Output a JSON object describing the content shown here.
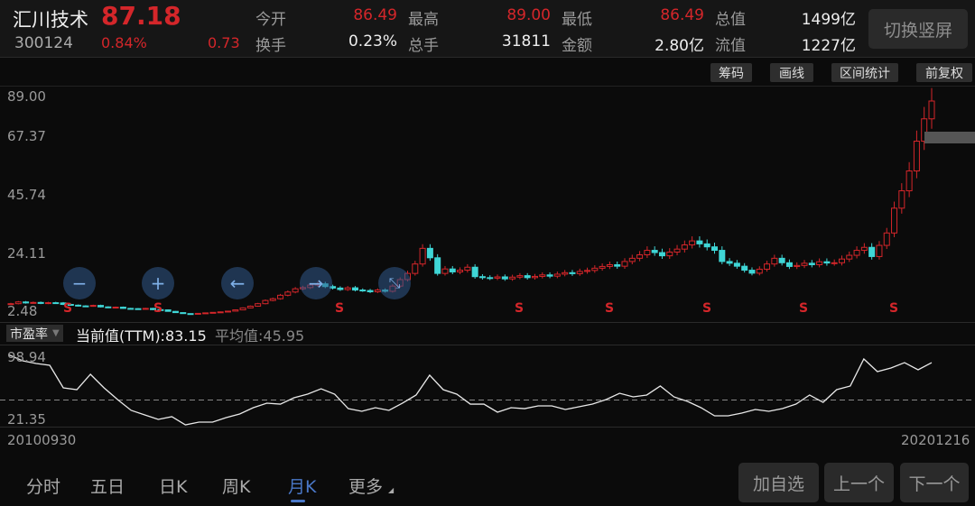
{
  "header": {
    "name": "汇川技术",
    "price": "87.18",
    "code": "300124",
    "change_pct": "0.84%",
    "change": "0.73",
    "stats": [
      {
        "label": "今开",
        "value": "86.49",
        "color": "red"
      },
      {
        "label": "最高",
        "value": "89.00",
        "color": "red"
      },
      {
        "label": "最低",
        "value": "86.49",
        "color": "red"
      },
      {
        "label": "总值",
        "value": "1499亿",
        "color": "white"
      },
      {
        "label": "换手",
        "value": "0.23%",
        "color": "white"
      },
      {
        "label": "总手",
        "value": "31811",
        "color": "white"
      },
      {
        "label": "金额",
        "value": "2.80亿",
        "color": "white"
      },
      {
        "label": "流值",
        "value": "1227亿",
        "color": "white"
      }
    ],
    "switch_label": "切换竖屏"
  },
  "toolbar": {
    "chips": "筹码",
    "draw": "画线",
    "range_stats": "区间统计",
    "adjust": "前复权"
  },
  "price_axis": [
    "89.00",
    "67.37",
    "45.74",
    "24.11",
    "2.48"
  ],
  "s_marker": "S",
  "overlay_icons": [
    "zoom-out-icon",
    "zoom-in-icon",
    "arrow-left-icon",
    "arrow-right-icon",
    "shrink-icon"
  ],
  "pe": {
    "selector": "市盈率",
    "current": "当前值(TTM):83.15",
    "average": "平均值:45.95",
    "axis_top": "98.94",
    "axis_bottom": "21.35"
  },
  "dates": {
    "start": "20100930",
    "end": "20201216"
  },
  "tabs": [
    "分时",
    "五日",
    "日K",
    "周K",
    "月K",
    "更多"
  ],
  "active_tab": 4,
  "buttons": {
    "add": "加自选",
    "prev": "上一个",
    "next": "下一个"
  },
  "colors": {
    "up": "#d4262a",
    "down": "#3fd6d6",
    "active": "#4a78c8"
  },
  "chart_data": [
    {
      "type": "candlestick",
      "ylim": [
        2.48,
        89.0
      ],
      "close": [
        5.5,
        6.2,
        5.8,
        6.0,
        5.6,
        5.9,
        5.8,
        5.2,
        4.9,
        4.6,
        4.5,
        4.8,
        4.2,
        3.9,
        4.1,
        3.6,
        3.5,
        3.3,
        3.6,
        3.1,
        3.0,
        2.4,
        1.9,
        1.5,
        1.4,
        1.6,
        1.8,
        2.0,
        2.2,
        2.5,
        3.0,
        3.8,
        4.5,
        5.5,
        6.8,
        7.5,
        8.9,
        10.2,
        11.5,
        12.0,
        13.0,
        13.5,
        12.4,
        11.8,
        11.2,
        11.9,
        11.0,
        10.8,
        10.3,
        11.0,
        10.5,
        12.6,
        15.2,
        17.7,
        21.5,
        27.8,
        24.0,
        17.7,
        19.5,
        18.3,
        19.0,
        20.2,
        16.4,
        16.0,
        15.8,
        16.3,
        15.5,
        16.2,
        16.8,
        16.0,
        16.5,
        17.1,
        16.6,
        17.4,
        18.0,
        17.6,
        18.5,
        18.9,
        19.8,
        20.5,
        21.2,
        20.6,
        22.5,
        23.8,
        25.2,
        27.0,
        26.1,
        24.8,
        26.3,
        27.5,
        29.2,
        30.8,
        29.6,
        28.4,
        27.0,
        22.5,
        21.8,
        20.6,
        19.0,
        17.8,
        19.4,
        21.5,
        23.8,
        22.0,
        20.5,
        20.9,
        21.8,
        21.2,
        22.4,
        21.9,
        22.0,
        23.5,
        25.0,
        27.0,
        28.2,
        24.5,
        29.0,
        34.0,
        44.0,
        51.0,
        59.0,
        71.0,
        80.0,
        87.18
      ]
    },
    {
      "type": "line",
      "ylim": [
        21.35,
        98.94
      ],
      "average": 45.95,
      "values": [
        103,
        95.5,
        92.1,
        89.8,
        61.3,
        59.0,
        78.4,
        61.3,
        46.5,
        32.8,
        27.1,
        21.4,
        24.8,
        14.5,
        17.9,
        17.9,
        23.6,
        28.2,
        36.2,
        41.9,
        40.7,
        48.7,
        53.3,
        60.1,
        53.3,
        35.0,
        31.6,
        36.2,
        32.8,
        41.9,
        52.2,
        77.3,
        59.0,
        53.3,
        40.7,
        40.7,
        30.5,
        36.2,
        35.0,
        38.5,
        38.5,
        33.9,
        37.3,
        40.7,
        46.5,
        54.4,
        49.9,
        52.2,
        63.6,
        49.9,
        44.2,
        36.2,
        25.9,
        25.9,
        29.3,
        33.9,
        31.6,
        35.0,
        40.7,
        52.2,
        43.0,
        59.0,
        63.6,
        97.8,
        81.8,
        86.4,
        93.2,
        84.1,
        93.2
      ]
    }
  ]
}
